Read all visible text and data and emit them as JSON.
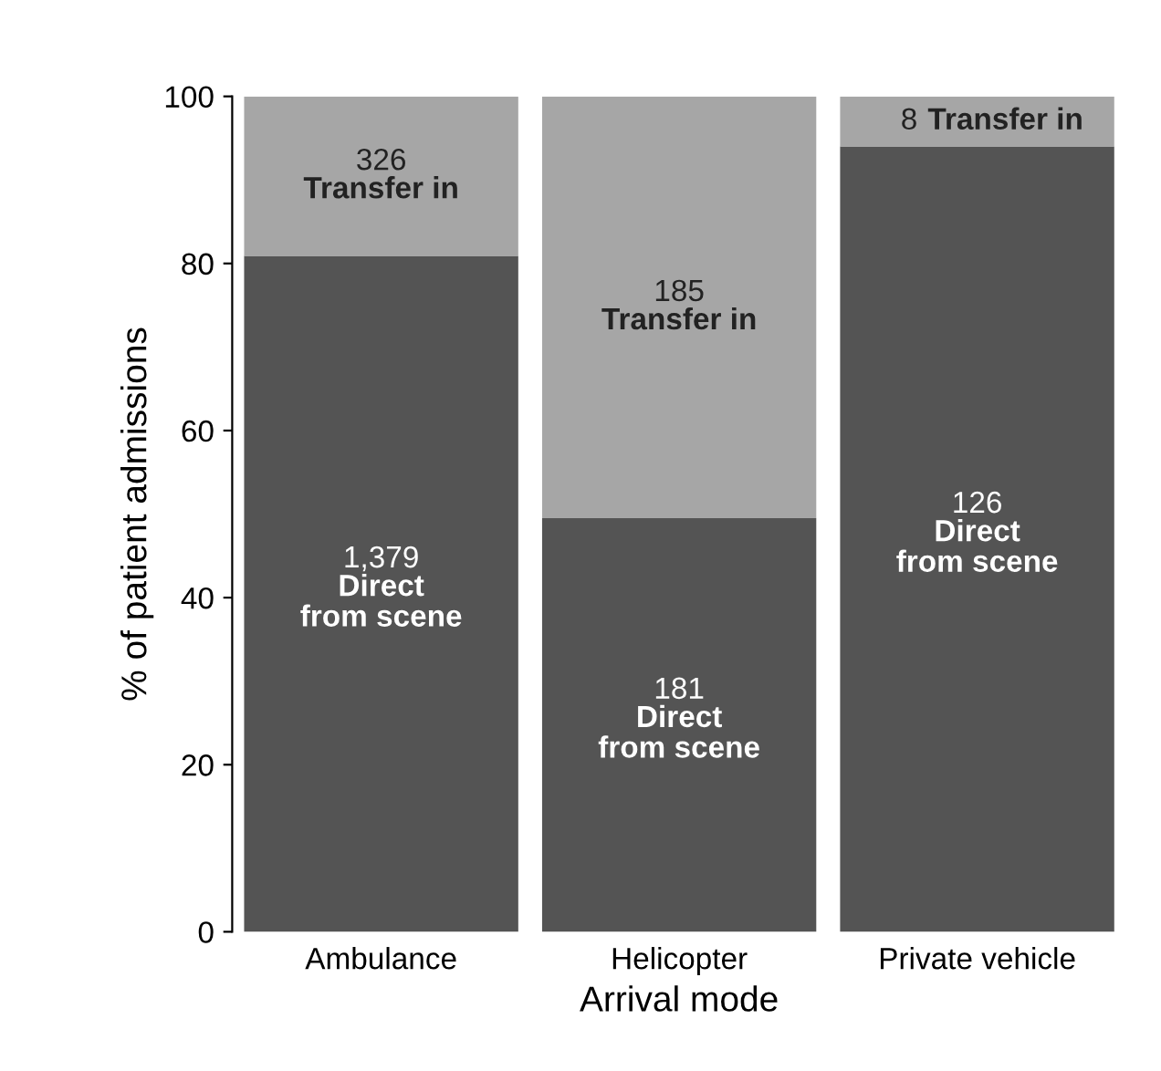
{
  "chart_data": {
    "type": "bar",
    "stacked": true,
    "xlabel": "Arrival mode",
    "ylabel": "% of patient admissions",
    "categories": [
      "Ambulance",
      "Helicopter",
      "Private vehicle"
    ],
    "series": [
      {
        "color": "#545454",
        "values": [
          80.9,
          49.5,
          94.0
        ]
      },
      {
        "color": "#a6a6a6",
        "values": [
          19.1,
          50.5,
          6.0
        ]
      }
    ],
    "annotations": [
      "1,379\nDirect\nfrom scene",
      "181\nDirect\nfrom scene",
      "126\nDirect\nfrom scene",
      "326\nTransfer in",
      "185\nTransfer in",
      "8 Transfer in"
    ],
    "ylim": [
      0,
      100
    ],
    "yticks": [
      0,
      20,
      40,
      60,
      80,
      100
    ],
    "grid": false,
    "legend": false
  }
}
